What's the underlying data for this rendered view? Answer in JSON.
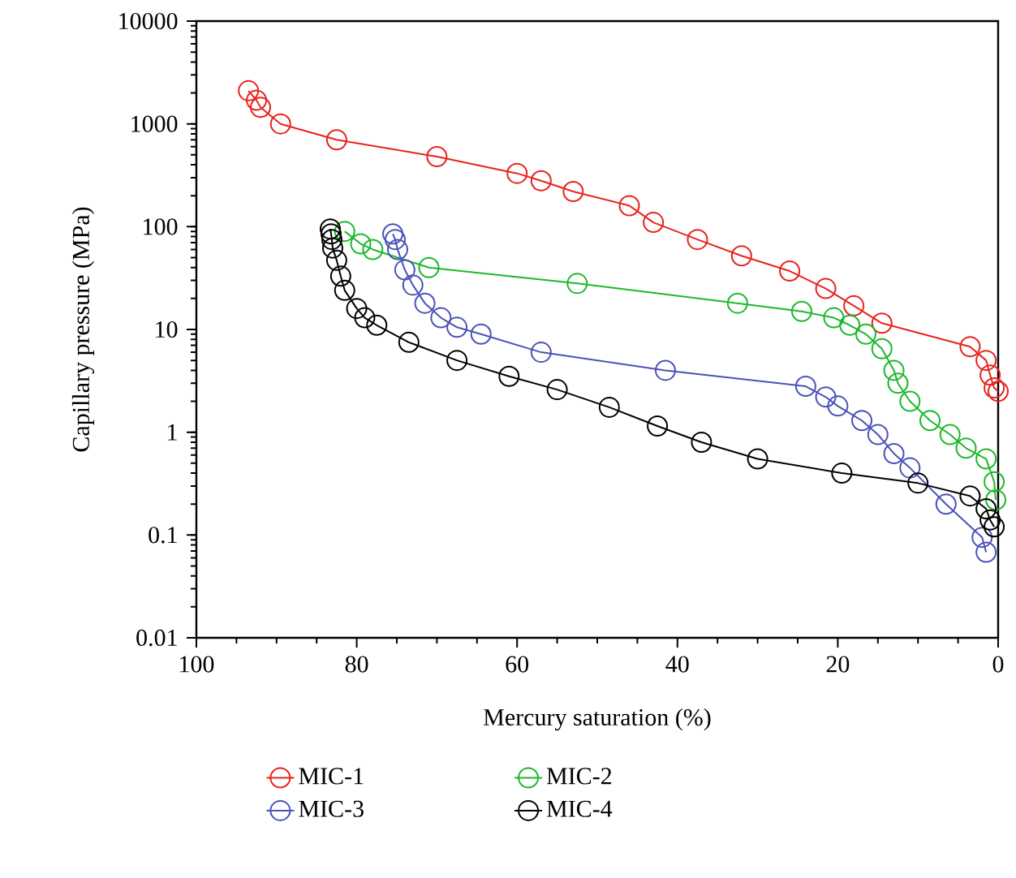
{
  "chart_data": {
    "type": "line",
    "xlabel": "Mercury saturation (%)",
    "ylabel": "Capillary pressure (MPa)",
    "xlim": [
      100,
      0
    ],
    "ylim": [
      0.01,
      10000
    ],
    "xticks": [
      100,
      80,
      60,
      40,
      20,
      0
    ],
    "yticks": [
      0.01,
      0.1,
      1,
      10,
      100,
      1000,
      10000
    ],
    "log": "y",
    "legend": "bottom",
    "marker": "circle",
    "grid": false,
    "series": [
      {
        "name": "MIC-1",
        "color": "#e8231d",
        "x": [
          93.5,
          92.5,
          92,
          89.5,
          82.5,
          70,
          60,
          57,
          53,
          46,
          43,
          37.5,
          32,
          26,
          21.5,
          18,
          14.5,
          3.5,
          1.5,
          1,
          0.5,
          0
        ],
        "values": [
          2100,
          1700,
          1450,
          1000,
          700,
          480,
          330,
          280,
          220,
          160,
          110,
          75,
          52,
          37,
          25,
          17,
          11.5,
          6.8,
          5,
          3.6,
          2.7,
          2.5
        ]
      },
      {
        "name": "MIC-2",
        "color": "#1db82b",
        "x": [
          81.5,
          79.5,
          78,
          71,
          52.5,
          32.5,
          24.5,
          20.5,
          18.5,
          16.5,
          14.5,
          13,
          12.5,
          11,
          8.5,
          6,
          4,
          1.5,
          0.5,
          0.3
        ],
        "values": [
          90,
          68,
          60,
          40,
          28,
          18,
          15,
          13,
          11,
          9,
          6.5,
          4,
          3,
          2,
          1.3,
          0.95,
          0.7,
          0.55,
          0.33,
          0.22
        ]
      },
      {
        "name": "MIC-3",
        "color": "#4a52b8",
        "x": [
          75.5,
          75.2,
          74.9,
          74,
          73,
          71.5,
          69.5,
          67.5,
          64.5,
          57,
          41.5,
          24,
          21.5,
          20,
          17,
          15,
          13,
          11,
          6.5,
          2,
          1.5
        ],
        "values": [
          85,
          75,
          60,
          38,
          27,
          18,
          13,
          10.5,
          9,
          6,
          4,
          2.8,
          2.2,
          1.8,
          1.3,
          0.95,
          0.62,
          0.45,
          0.2,
          0.095,
          0.068
        ]
      },
      {
        "name": "MIC-4",
        "color": "#000000",
        "x": [
          83.3,
          83.2,
          83.1,
          83,
          82.5,
          82,
          81.5,
          80,
          79,
          77.5,
          73.5,
          67.5,
          61,
          55,
          48.5,
          42.5,
          37,
          30,
          19.5,
          10,
          3.5,
          1.5,
          1,
          0.5
        ],
        "values": [
          95,
          85,
          75,
          62,
          47,
          33,
          24,
          16,
          13,
          11,
          7.5,
          5,
          3.5,
          2.6,
          1.75,
          1.15,
          0.8,
          0.55,
          0.4,
          0.32,
          0.24,
          0.18,
          0.14,
          0.12
        ]
      }
    ]
  }
}
